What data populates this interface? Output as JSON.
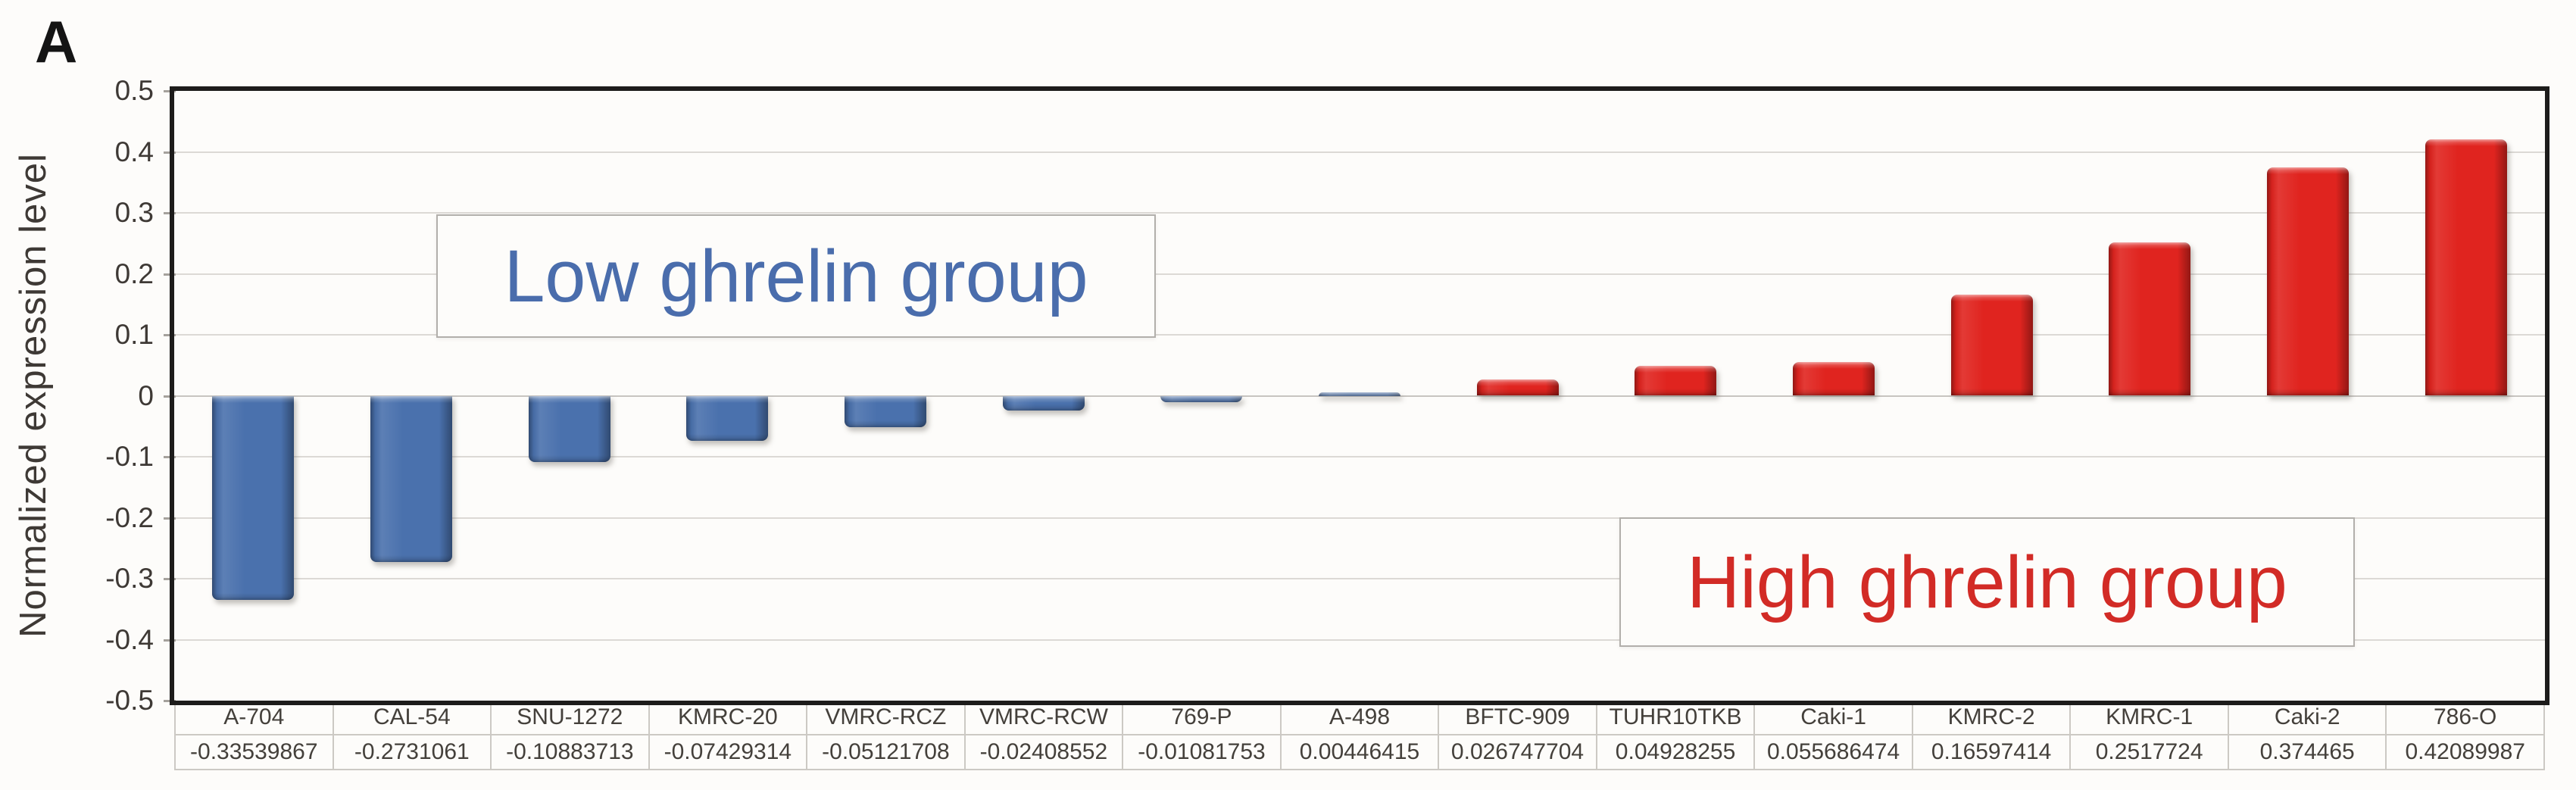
{
  "figure": {
    "panel_label": "A"
  },
  "chart_data": {
    "type": "bar",
    "title": "",
    "xlabel": "",
    "ylabel": "Normalized expression level",
    "ylim": [
      -0.5,
      0.5
    ],
    "grid": true,
    "legend_position": "none",
    "y_ticks": [
      "0.5",
      "0.4",
      "0.3",
      "0.2",
      "0.1",
      "0",
      "-0.1",
      "-0.2",
      "-0.3",
      "-0.4",
      "-0.5"
    ],
    "categories": [
      "A-704",
      "CAL-54",
      "SNU-1272",
      "KMRC-20",
      "VMRC-RCZ",
      "VMRC-RCW",
      "769-P",
      "A-498",
      "BFTC-909",
      "TUHR10TKB",
      "Caki-1",
      "KMRC-2",
      "KMRC-1",
      "Caki-2",
      "786-O"
    ],
    "values": [
      -0.33539867,
      -0.2731061,
      -0.10883713,
      -0.07429314,
      -0.05121708,
      -0.02408552,
      -0.01081753,
      0.00446415,
      0.026747704,
      0.04928255,
      0.055686474,
      0.16597414,
      0.2517724,
      0.374465,
      0.42089987
    ],
    "value_labels": [
      "-0.33539867",
      "-0.2731061",
      "-0.10883713",
      "-0.07429314",
      "-0.05121708",
      "-0.02408552",
      "-0.01081753",
      "0.00446415",
      "0.026747704",
      "0.04928255",
      "0.055686474",
      "0.16597414",
      "0.2517724",
      "0.374465",
      "0.42089987"
    ],
    "bar_groups": [
      "low",
      "low",
      "low",
      "low",
      "low",
      "low",
      "low",
      "low",
      "high",
      "high",
      "high",
      "high",
      "high",
      "high",
      "high"
    ],
    "group_colors": {
      "low": "#4a71ad",
      "high": "#e0241f"
    },
    "annotations": [
      {
        "id": "low",
        "text": "Low ghrelin group",
        "color": "#4a6dac"
      },
      {
        "id": "high",
        "text": "High ghrelin group",
        "color": "#d22b26"
      }
    ]
  }
}
